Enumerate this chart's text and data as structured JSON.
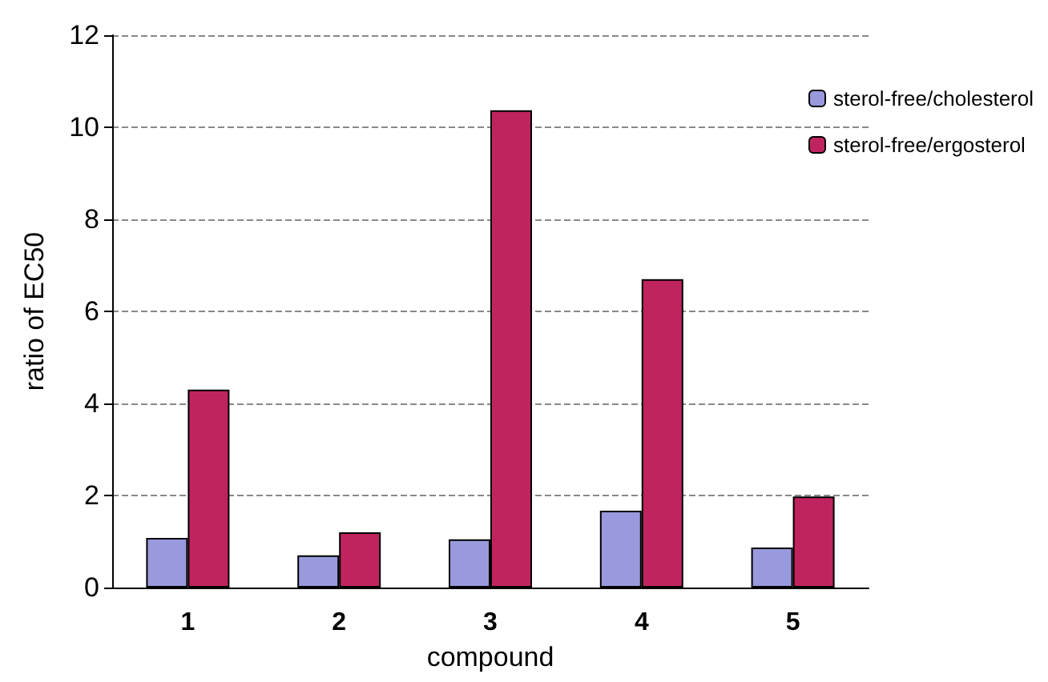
{
  "chart_data": {
    "type": "bar",
    "xlabel": "compound",
    "ylabel": "ratio of EC50",
    "categories": [
      "1",
      "2",
      "3",
      "4",
      "5"
    ],
    "series": [
      {
        "name": "sterol-free/cholesterol",
        "color": "#9999dd",
        "values": [
          1.08,
          0.7,
          1.05,
          1.67,
          0.87
        ]
      },
      {
        "name": "sterol-free/ergosterol",
        "color": "#c0245e",
        "values": [
          4.3,
          1.2,
          10.37,
          6.7,
          1.98
        ]
      }
    ],
    "ylim": [
      0,
      12
    ],
    "yticks": [
      0,
      2,
      4,
      6,
      8,
      10,
      12
    ],
    "grid": "y",
    "legend": "right"
  }
}
